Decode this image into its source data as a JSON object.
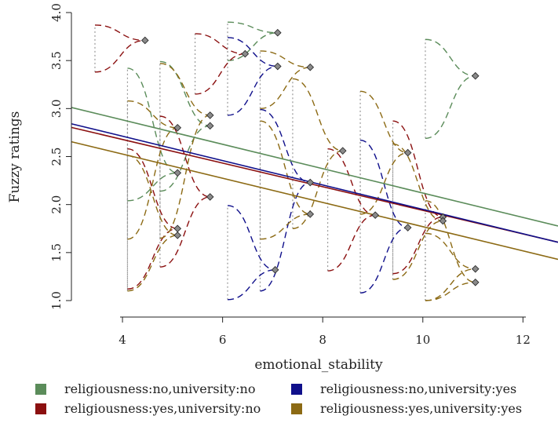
{
  "chart_data": {
    "type": "scatter",
    "xlabel": "emotional_stability",
    "ylabel": "Fuzzy ratings",
    "xlim": [
      2.98,
      12.7
    ],
    "ylim": [
      1.0,
      4.0
    ],
    "x_ticks": [
      "4",
      "6",
      "8",
      "10",
      "12"
    ],
    "y_ticks": [
      "1.0",
      "1.5",
      "2.0",
      "2.5",
      "3.0",
      "3.5",
      "4.0"
    ],
    "legend_position": "bottom",
    "series": [
      {
        "name": "religiousness:no,university:no",
        "color": "#5b8c5a",
        "regression": {
          "intercept": 3.39,
          "slope": -0.127
        },
        "fuzzy_triangles": [
          {
            "x": 4.1,
            "low": 2.04,
            "apex_x": 5.1,
            "apex_y": 2.33,
            "high": 3.42
          },
          {
            "x": 4.75,
            "low": 2.14,
            "apex_x": 5.75,
            "apex_y": 2.82,
            "high": 3.49
          },
          {
            "x": 6.1,
            "low": 3.5,
            "apex_x": 7.1,
            "apex_y": 3.79,
            "high": 3.9
          },
          {
            "x": 10.05,
            "low": 2.69,
            "apex_x": 11.05,
            "apex_y": 3.34,
            "high": 3.72
          }
        ]
      },
      {
        "name": "religiousness:yes,university:no",
        "color": "#8b1010",
        "regression": {
          "intercept": 3.17,
          "slope": -0.123
        },
        "fuzzy_triangles": [
          {
            "x": 3.45,
            "low": 3.38,
            "apex_x": 4.45,
            "apex_y": 3.71,
            "high": 3.87
          },
          {
            "x": 4.1,
            "low": 1.12,
            "apex_x": 5.1,
            "apex_y": 1.75,
            "high": 2.58
          },
          {
            "x": 4.75,
            "low": 1.35,
            "apex_x": 5.75,
            "apex_y": 2.08,
            "high": 2.92
          },
          {
            "x": 5.45,
            "low": 3.15,
            "apex_x": 6.45,
            "apex_y": 3.57,
            "high": 3.78
          },
          {
            "x": 8.1,
            "low": 1.31,
            "apex_x": 9.05,
            "apex_y": 1.89,
            "high": 2.58
          },
          {
            "x": 9.4,
            "low": 1.28,
            "apex_x": 10.4,
            "apex_y": 1.87,
            "high": 2.87
          }
        ]
      },
      {
        "name": "religiousness:no,university:yes",
        "color": "#10108b",
        "regression": {
          "intercept": 3.22,
          "slope": -0.127
        },
        "fuzzy_triangles": [
          {
            "x": 6.1,
            "low": 2.93,
            "apex_x": 7.1,
            "apex_y": 3.44,
            "high": 3.74
          },
          {
            "x": 6.1,
            "low": 1.01,
            "apex_x": 7.05,
            "apex_y": 1.32,
            "high": 1.99
          },
          {
            "x": 6.75,
            "low": 1.1,
            "apex_x": 7.75,
            "apex_y": 2.23,
            "high": 2.99
          },
          {
            "x": 8.75,
            "low": 1.08,
            "apex_x": 9.7,
            "apex_y": 1.76,
            "high": 2.67
          }
        ]
      },
      {
        "name": "religiousness:yes,university:yes",
        "color": "#8c6a14",
        "regression": {
          "intercept": 3.03,
          "slope": -0.126
        },
        "fuzzy_triangles": [
          {
            "x": 4.1,
            "low": 1.1,
            "apex_x": 5.1,
            "apex_y": 1.68,
            "high": 2.51
          },
          {
            "x": 4.1,
            "low": 1.64,
            "apex_x": 5.1,
            "apex_y": 2.8,
            "high": 3.08
          },
          {
            "x": 4.75,
            "low": 1.65,
            "apex_x": 5.75,
            "apex_y": 2.93,
            "high": 3.47
          },
          {
            "x": 6.75,
            "low": 1.64,
            "apex_x": 7.75,
            "apex_y": 1.9,
            "high": 2.87
          },
          {
            "x": 6.75,
            "low": 3.0,
            "apex_x": 7.75,
            "apex_y": 3.43,
            "high": 3.6
          },
          {
            "x": 7.4,
            "low": 1.75,
            "apex_x": 8.4,
            "apex_y": 2.56,
            "high": 3.31
          },
          {
            "x": 8.75,
            "low": 1.9,
            "apex_x": 9.7,
            "apex_y": 2.54,
            "high": 3.18
          },
          {
            "x": 10.05,
            "low": 1.0,
            "apex_x": 11.05,
            "apex_y": 1.33,
            "high": 1.7
          },
          {
            "x": 10.05,
            "low": 1.0,
            "apex_x": 11.05,
            "apex_y": 1.19,
            "high": 2.04
          },
          {
            "x": 9.4,
            "low": 1.22,
            "apex_x": 10.4,
            "apex_y": 1.83,
            "high": 2.63
          }
        ]
      }
    ]
  }
}
